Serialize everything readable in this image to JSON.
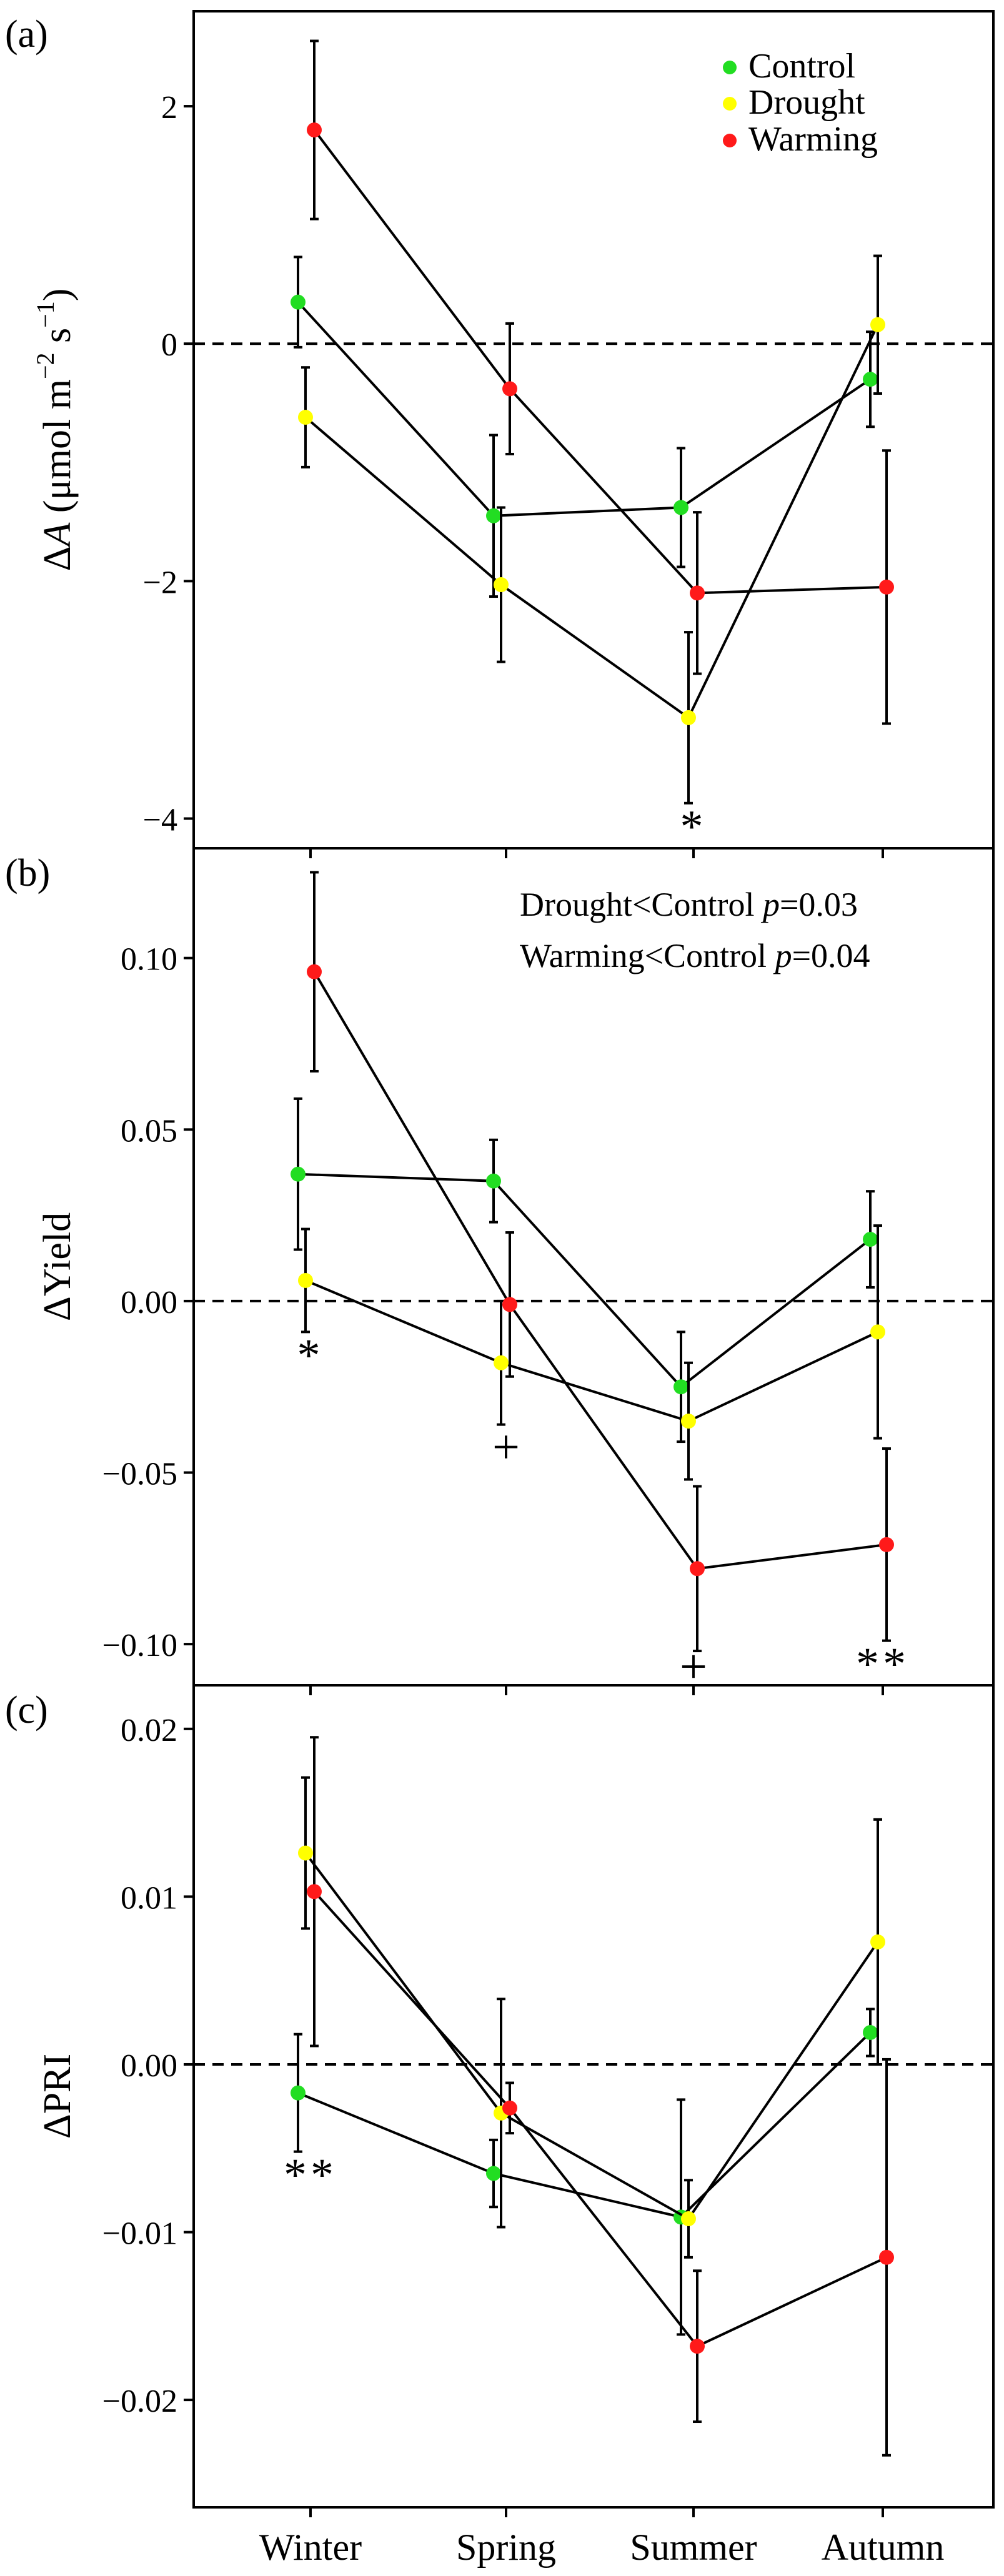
{
  "figure": {
    "x_categories": [
      "Winter",
      "Spring",
      "Summer",
      "Autumn"
    ],
    "legend": [
      {
        "name": "Control",
        "color": "#22dd22"
      },
      {
        "name": "Drought",
        "color": "#ffff00"
      },
      {
        "name": "Warming",
        "color": "#ff1a1a"
      }
    ]
  },
  "chart_data": [
    {
      "type": "line",
      "panel_label": "(a)",
      "ylabel_prefix": "Δ",
      "ylabel_var": "A",
      "ylabel_units": " (μmol m",
      "ylabel_sup1": "−2",
      "ylabel_mid": " s",
      "ylabel_sup2": "−1",
      "ylabel_end": ")",
      "ylim": [
        -4.25,
        2.8
      ],
      "yticks": [
        2,
        0,
        -2,
        -4
      ],
      "ytick_labels": [
        "2",
        "0",
        "−2",
        "−4"
      ],
      "reference_line": 0,
      "categories": [
        "Winter",
        "Spring",
        "Summer",
        "Autumn"
      ],
      "series": [
        {
          "name": "Control",
          "values": [
            0.35,
            -1.45,
            -1.38,
            -0.3
          ],
          "errors": [
            0.38,
            0.68,
            0.5,
            0.4
          ]
        },
        {
          "name": "Drought",
          "values": [
            -0.62,
            -2.03,
            -3.15,
            0.16
          ],
          "errors": [
            0.42,
            0.65,
            0.72,
            0.58
          ]
        },
        {
          "name": "Warming",
          "values": [
            1.8,
            -0.38,
            -2.1,
            -2.05
          ],
          "errors": [
            0.75,
            0.55,
            0.68,
            1.15
          ]
        }
      ],
      "annotations": [
        {
          "text": "*",
          "category": "Summer",
          "offset": 0
        }
      ],
      "notes": []
    },
    {
      "type": "line",
      "panel_label": "(b)",
      "ylabel_prefix": "Δ",
      "ylabel_var": "",
      "ylabel_units": "Yield",
      "ylim": [
        -0.112,
        0.132
      ],
      "yticks": [
        0.1,
        0.05,
        0.0,
        -0.05,
        -0.1
      ],
      "ytick_labels": [
        "0.10",
        "0.05",
        "0.00",
        "−0.05",
        "−0.10"
      ],
      "reference_line": 0,
      "categories": [
        "Winter",
        "Spring",
        "Summer",
        "Autumn"
      ],
      "series": [
        {
          "name": "Control",
          "values": [
            0.037,
            0.035,
            -0.025,
            0.018
          ],
          "errors": [
            0.022,
            0.012,
            0.016,
            0.014
          ]
        },
        {
          "name": "Drought",
          "values": [
            0.006,
            -0.018,
            -0.035,
            -0.009
          ],
          "errors": [
            0.015,
            0.018,
            0.017,
            0.031
          ]
        },
        {
          "name": "Warming",
          "values": [
            0.096,
            -0.001,
            -0.078,
            -0.071
          ],
          "errors": [
            0.029,
            0.021,
            0.024,
            0.028
          ]
        }
      ],
      "annotations": [
        {
          "text": "*",
          "category": "Winter",
          "offset": 0
        },
        {
          "text": "+",
          "category": "Spring",
          "offset": 0
        },
        {
          "text": "+",
          "category": "Summer",
          "offset": 0
        },
        {
          "text": "**",
          "category": "Autumn",
          "offset": 0
        }
      ],
      "notes": [
        {
          "prefix": "Drought<Control ",
          "var": "p",
          "suffix": "=0.03"
        },
        {
          "prefix": "Warming<Control ",
          "var": "p",
          "suffix": "=0.04"
        }
      ]
    },
    {
      "type": "line",
      "panel_label": "(c)",
      "ylabel_prefix": "Δ",
      "ylabel_var": "",
      "ylabel_units": "PRI",
      "ylim": [
        -0.0264,
        0.0226
      ],
      "yticks": [
        0.02,
        0.01,
        0.0,
        -0.01,
        -0.02
      ],
      "ytick_labels": [
        "0.02",
        "0.01",
        "0.00",
        "−0.01",
        "−0.02"
      ],
      "reference_line": 0,
      "categories": [
        "Winter",
        "Spring",
        "Summer",
        "Autumn"
      ],
      "series": [
        {
          "name": "Control",
          "values": [
            -0.0017,
            -0.0065,
            -0.0091,
            0.0019
          ],
          "errors": [
            0.0035,
            0.002,
            0.007,
            0.0014
          ]
        },
        {
          "name": "Drought",
          "values": [
            0.0126,
            -0.0029,
            -0.0092,
            0.0073
          ],
          "errors": [
            0.0045,
            0.0068,
            0.0023,
            0.0073
          ]
        },
        {
          "name": "Warming",
          "values": [
            0.0103,
            -0.0026,
            -0.0168,
            -0.0115
          ],
          "errors": [
            0.0092,
            0.0015,
            0.0045,
            0.0118
          ]
        }
      ],
      "annotations": [
        {
          "text": "**",
          "category": "Winter",
          "offset": 0
        }
      ],
      "notes": []
    }
  ]
}
